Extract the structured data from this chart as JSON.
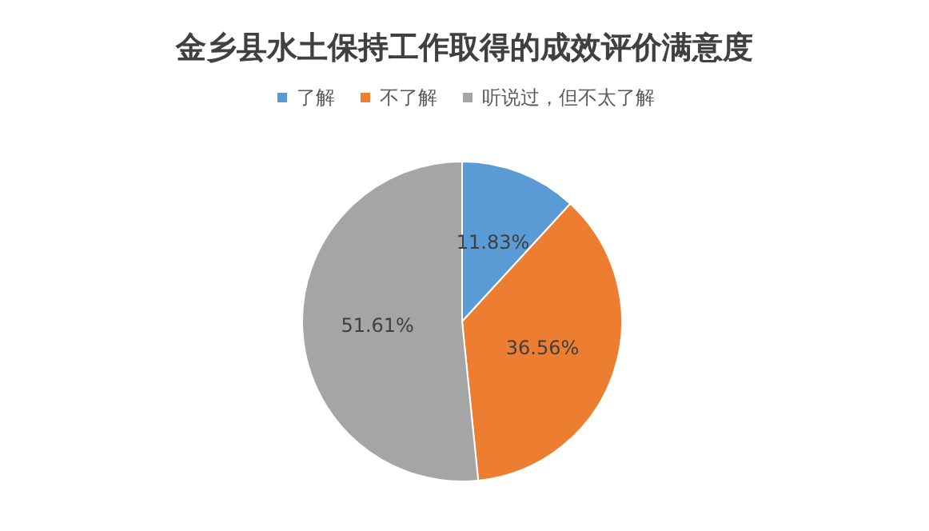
{
  "chart_data": {
    "type": "pie",
    "title": "金乡县水土保持工作取得的成效评价满意度",
    "categories": [
      "了解",
      "不了解",
      "听说过，但不太了解"
    ],
    "values": [
      11.83,
      36.56,
      51.61
    ],
    "colors": [
      "#5b9bd5",
      "#ed7d31",
      "#a5a5a5"
    ],
    "value_labels": [
      "11.83%",
      "36.56%",
      "51.61%"
    ],
    "legend": "top"
  }
}
